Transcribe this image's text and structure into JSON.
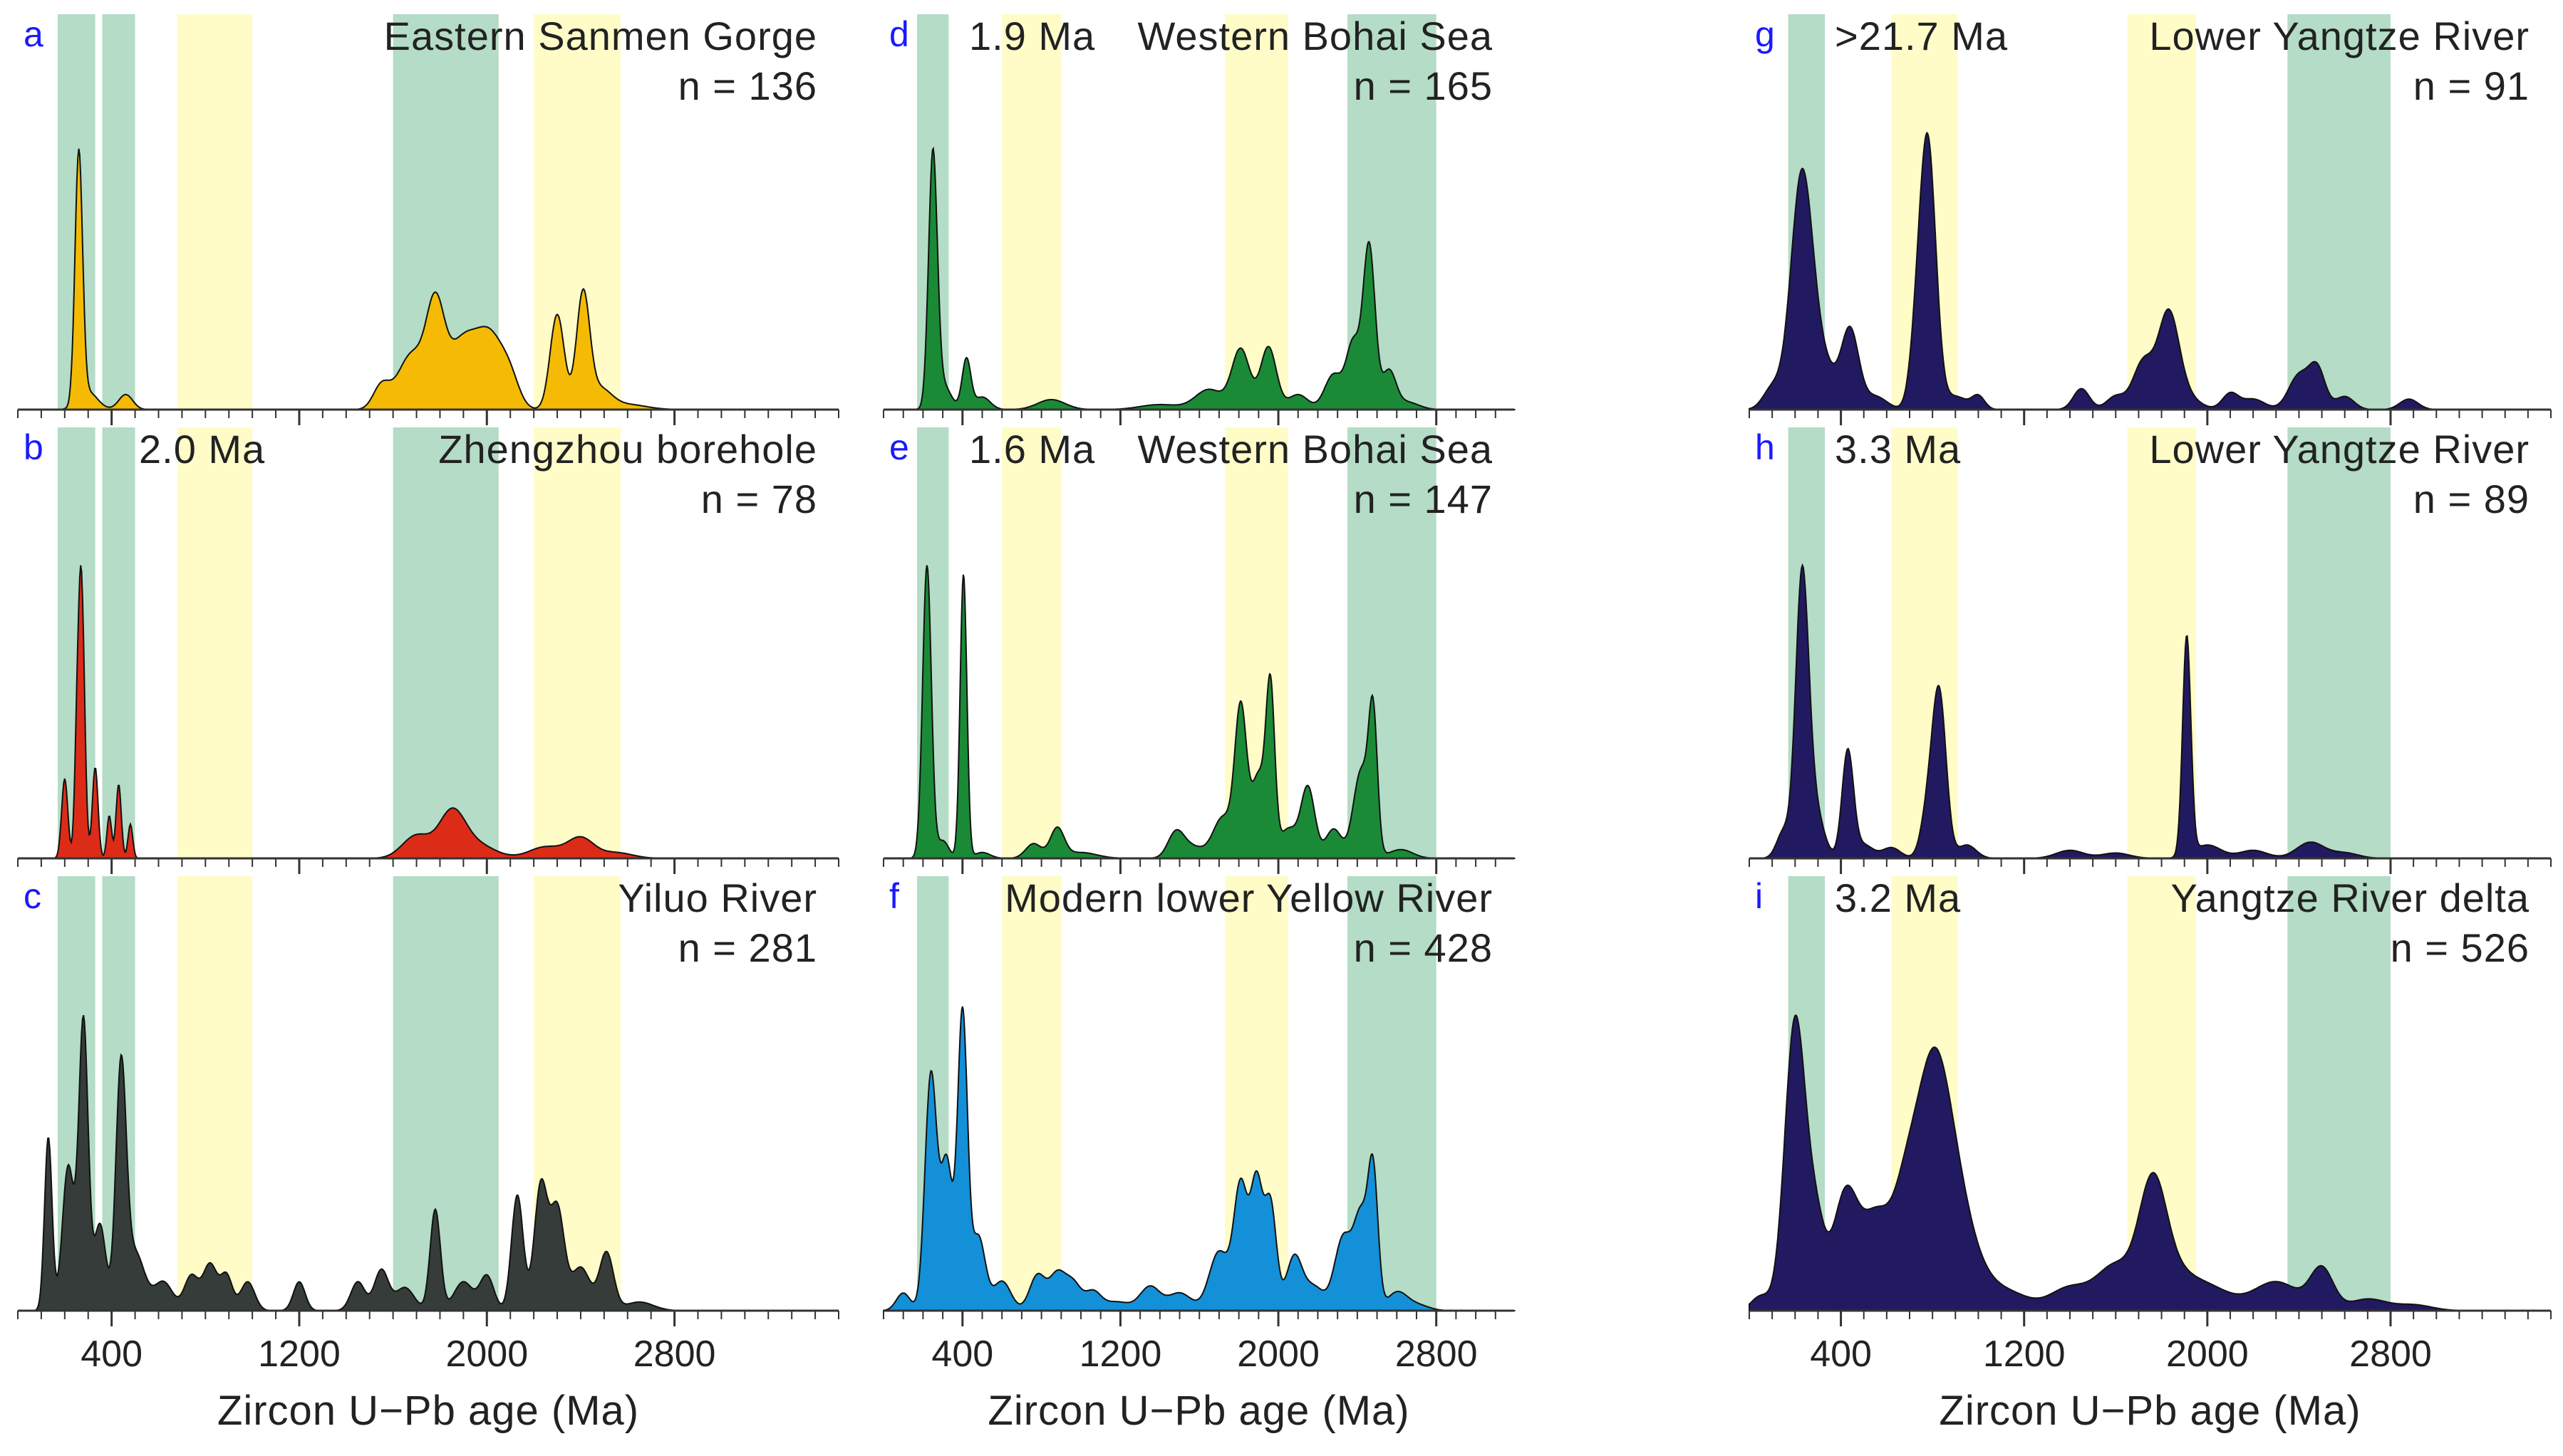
{
  "chart_data": {
    "type": "area",
    "x_axis": {
      "label": "Zircon U−Pb age (Ma)",
      "ticks": [
        400,
        1200,
        2000,
        2800
      ],
      "minor_step": 100,
      "range": [
        0,
        3500
      ]
    },
    "bands": {
      "green": [
        [
          170,
          330
        ],
        [
          360,
          500
        ],
        [
          1600,
          2050
        ],
        [
          2400,
          2850
        ],
        [
          2350,
          2800
        ]
      ],
      "yellow": [
        [
          680,
          1000
        ],
        [
          2200,
          2570
        ],
        [
          1730,
          2050
        ],
        [
          600,
          900
        ],
        [
          1650,
          1950
        ],
        [
          620,
          910
        ]
      ]
    },
    "panels": [
      {
        "id": "a",
        "letter": "a",
        "header_left": "",
        "header_right": "Eastern  Sanmen  Gorge",
        "n_label": "n = 136",
        "color": "#f5bb04",
        "green_bands": [
          [
            170,
            330
          ],
          [
            360,
            500
          ],
          [
            1600,
            2050
          ]
        ],
        "yellow_bands": [
          [
            680,
            1000
          ],
          [
            2200,
            2570
          ]
        ],
        "peaks": [
          [
            260,
            1.0,
            16
          ],
          [
            300,
            0.07,
            40
          ],
          [
            460,
            0.06,
            30
          ],
          [
            1550,
            0.09,
            35
          ],
          [
            1680,
            0.22,
            60
          ],
          [
            1780,
            0.35,
            38
          ],
          [
            1900,
            0.28,
            70
          ],
          [
            2020,
            0.24,
            55
          ],
          [
            2100,
            0.1,
            40
          ],
          [
            2300,
            0.38,
            30
          ],
          [
            2410,
            0.45,
            28
          ],
          [
            2480,
            0.08,
            50
          ],
          [
            2600,
            0.02,
            80
          ]
        ]
      },
      {
        "id": "b",
        "letter": "b",
        "header_left": "2.0 Ma",
        "header_right": "Zhengzhou borehole",
        "n_label": "n = 78",
        "color": "#dc2c18",
        "green_bands": [
          [
            170,
            330
          ],
          [
            360,
            500
          ],
          [
            1600,
            2050
          ]
        ],
        "yellow_bands": [
          [
            680,
            1000
          ],
          [
            2200,
            2570
          ]
        ],
        "peaks": [
          [
            200,
            0.28,
            13
          ],
          [
            250,
            0.2,
            10
          ],
          [
            270,
            1.0,
            14
          ],
          [
            330,
            0.32,
            12
          ],
          [
            390,
            0.15,
            10
          ],
          [
            430,
            0.26,
            11
          ],
          [
            480,
            0.12,
            10
          ],
          [
            1700,
            0.08,
            60
          ],
          [
            1850,
            0.15,
            55
          ],
          [
            1950,
            0.05,
            80
          ],
          [
            2250,
            0.04,
            70
          ],
          [
            2400,
            0.07,
            55
          ],
          [
            2550,
            0.02,
            70
          ]
        ]
      },
      {
        "id": "c",
        "letter": "c",
        "header_left": "",
        "header_right": "Yiluo River",
        "n_label": "n = 281",
        "color": "#353c3a",
        "green_bands": [
          [
            170,
            330
          ],
          [
            360,
            500
          ],
          [
            1600,
            2050
          ]
        ],
        "yellow_bands": [
          [
            680,
            1000
          ],
          [
            2200,
            2570
          ]
        ],
        "peaks": [
          [
            130,
            0.6,
            16
          ],
          [
            215,
            0.5,
            25
          ],
          [
            280,
            1.0,
            20
          ],
          [
            350,
            0.3,
            25
          ],
          [
            440,
            0.82,
            22
          ],
          [
            500,
            0.2,
            40
          ],
          [
            620,
            0.1,
            40
          ],
          [
            740,
            0.12,
            30
          ],
          [
            820,
            0.16,
            30
          ],
          [
            890,
            0.12,
            25
          ],
          [
            980,
            0.1,
            30
          ],
          [
            1200,
            0.1,
            25
          ],
          [
            1450,
            0.1,
            30
          ],
          [
            1550,
            0.14,
            30
          ],
          [
            1650,
            0.08,
            40
          ],
          [
            1780,
            0.35,
            22
          ],
          [
            1900,
            0.1,
            40
          ],
          [
            2000,
            0.12,
            30
          ],
          [
            2130,
            0.4,
            25
          ],
          [
            2230,
            0.43,
            28
          ],
          [
            2300,
            0.35,
            30
          ],
          [
            2400,
            0.15,
            40
          ],
          [
            2510,
            0.2,
            30
          ],
          [
            2650,
            0.03,
            60
          ]
        ]
      },
      {
        "id": "d",
        "letter": "d",
        "header_left": "1.9 Ma",
        "header_right": "Western Bohai Sea",
        "n_label": "n = 165",
        "color": "#1a8a36",
        "green_bands": [
          [
            170,
            330
          ],
          [
            2350,
            2800
          ]
        ],
        "yellow_bands": [
          [
            600,
            900
          ],
          [
            1730,
            2050
          ]
        ],
        "peaks": [
          [
            250,
            1.0,
            22
          ],
          [
            300,
            0.1,
            40
          ],
          [
            420,
            0.2,
            22
          ],
          [
            500,
            0.05,
            40
          ],
          [
            850,
            0.04,
            70
          ],
          [
            1400,
            0.02,
            100
          ],
          [
            1650,
            0.08,
            70
          ],
          [
            1810,
            0.24,
            45
          ],
          [
            1950,
            0.25,
            40
          ],
          [
            2100,
            0.06,
            50
          ],
          [
            2280,
            0.14,
            45
          ],
          [
            2380,
            0.26,
            35
          ],
          [
            2460,
            0.65,
            30
          ],
          [
            2560,
            0.15,
            35
          ],
          [
            2650,
            0.03,
            60
          ]
        ]
      },
      {
        "id": "e",
        "letter": "e",
        "header_left": "1.6 Ma",
        "header_right": "Western Bohai Sea",
        "n_label": "n = 147",
        "color": "#1a8a36",
        "green_bands": [
          [
            170,
            330
          ],
          [
            2350,
            2800
          ]
        ],
        "yellow_bands": [
          [
            600,
            900
          ],
          [
            1730,
            2050
          ]
        ],
        "peaks": [
          [
            220,
            1.0,
            22
          ],
          [
            300,
            0.06,
            30
          ],
          [
            405,
            0.97,
            17
          ],
          [
            500,
            0.02,
            40
          ],
          [
            760,
            0.05,
            40
          ],
          [
            880,
            0.1,
            35
          ],
          [
            1000,
            0.02,
            80
          ],
          [
            1480,
            0.08,
            40
          ],
          [
            1560,
            0.04,
            60
          ],
          [
            1720,
            0.14,
            50
          ],
          [
            1810,
            0.5,
            30
          ],
          [
            1900,
            0.28,
            35
          ],
          [
            1960,
            0.55,
            22
          ],
          [
            2050,
            0.1,
            45
          ],
          [
            2150,
            0.24,
            35
          ],
          [
            2280,
            0.1,
            40
          ],
          [
            2420,
            0.3,
            40
          ],
          [
            2480,
            0.45,
            22
          ],
          [
            2620,
            0.03,
            60
          ]
        ]
      },
      {
        "id": "f",
        "letter": "f",
        "header_left": "",
        "header_right": "Modern lower Yellow River",
        "n_label": "n =  428",
        "color": "#1390d8",
        "green_bands": [
          [
            170,
            330
          ],
          [
            2350,
            2800
          ]
        ],
        "yellow_bands": [
          [
            600,
            900
          ],
          [
            1730,
            2050
          ]
        ],
        "peaks": [
          [
            100,
            0.06,
            35
          ],
          [
            240,
            0.8,
            30
          ],
          [
            320,
            0.5,
            30
          ],
          [
            400,
            1.0,
            25
          ],
          [
            480,
            0.25,
            35
          ],
          [
            600,
            0.1,
            45
          ],
          [
            780,
            0.12,
            40
          ],
          [
            880,
            0.12,
            40
          ],
          [
            960,
            0.09,
            40
          ],
          [
            1060,
            0.06,
            40
          ],
          [
            1180,
            0.03,
            70
          ],
          [
            1350,
            0.08,
            50
          ],
          [
            1500,
            0.06,
            60
          ],
          [
            1700,
            0.2,
            50
          ],
          [
            1810,
            0.42,
            35
          ],
          [
            1890,
            0.42,
            30
          ],
          [
            1960,
            0.36,
            30
          ],
          [
            2080,
            0.18,
            40
          ],
          [
            2180,
            0.08,
            50
          ],
          [
            2330,
            0.25,
            45
          ],
          [
            2420,
            0.3,
            35
          ],
          [
            2480,
            0.45,
            25
          ],
          [
            2600,
            0.06,
            50
          ],
          [
            2700,
            0.02,
            60
          ]
        ]
      },
      {
        "id": "g",
        "letter": "g",
        "header_left": ">21.7 Ma",
        "header_right": "Lower Yangtze River",
        "n_label": "n = 91",
        "color": "#221a60",
        "green_bands": [
          [
            170,
            330
          ],
          [
            2350,
            2800
          ]
        ],
        "yellow_bands": [
          [
            620,
            910
          ],
          [
            1650,
            1950
          ]
        ],
        "peaks": [
          [
            100,
            0.08,
            40
          ],
          [
            230,
            0.9,
            48
          ],
          [
            330,
            0.15,
            50
          ],
          [
            440,
            0.3,
            38
          ],
          [
            550,
            0.05,
            50
          ],
          [
            730,
            0.2,
            30
          ],
          [
            780,
            1.0,
            35
          ],
          [
            900,
            0.05,
            50
          ],
          [
            1000,
            0.05,
            28
          ],
          [
            1450,
            0.08,
            35
          ],
          [
            1600,
            0.05,
            40
          ],
          [
            1720,
            0.18,
            45
          ],
          [
            1830,
            0.35,
            45
          ],
          [
            1900,
            0.05,
            60
          ],
          [
            2100,
            0.06,
            35
          ],
          [
            2200,
            0.04,
            50
          ],
          [
            2400,
            0.13,
            45
          ],
          [
            2480,
            0.15,
            35
          ],
          [
            2600,
            0.05,
            40
          ],
          [
            2880,
            0.04,
            40
          ]
        ]
      },
      {
        "id": "h",
        "letter": "h",
        "header_left": "3.3 Ma",
        "header_right": "Lower Yangtze River",
        "n_label": "n = 89",
        "color": "#221a60",
        "green_bands": [
          [
            170,
            330
          ],
          [
            2350,
            2800
          ]
        ],
        "yellow_bands": [
          [
            620,
            910
          ],
          [
            1650,
            1950
          ]
        ],
        "peaks": [
          [
            150,
            0.1,
            30
          ],
          [
            230,
            1.0,
            28
          ],
          [
            280,
            0.2,
            40
          ],
          [
            430,
            0.4,
            25
          ],
          [
            500,
            0.05,
            40
          ],
          [
            620,
            0.04,
            40
          ],
          [
            780,
            0.17,
            30
          ],
          [
            830,
            0.6,
            30
          ],
          [
            950,
            0.05,
            40
          ],
          [
            1400,
            0.03,
            60
          ],
          [
            1600,
            0.02,
            60
          ],
          [
            1910,
            0.82,
            18
          ],
          [
            2000,
            0.05,
            60
          ],
          [
            2200,
            0.03,
            60
          ],
          [
            2450,
            0.06,
            60
          ],
          [
            2600,
            0.02,
            60
          ]
        ]
      },
      {
        "id": "i",
        "letter": "i",
        "header_left": "3.2 Ma",
        "header_right": "Yangtze River delta",
        "n_label": "n = 526",
        "color": "#221a60",
        "green_bands": [
          [
            170,
            330
          ],
          [
            2350,
            2800
          ]
        ],
        "yellow_bands": [
          [
            620,
            910
          ],
          [
            1650,
            1950
          ]
        ],
        "peaks": [
          [
            50,
            0.05,
            40
          ],
          [
            200,
            1.0,
            45
          ],
          [
            290,
            0.28,
            40
          ],
          [
            420,
            0.4,
            55
          ],
          [
            550,
            0.3,
            60
          ],
          [
            680,
            0.35,
            60
          ],
          [
            800,
            0.75,
            70
          ],
          [
            900,
            0.3,
            70
          ],
          [
            1000,
            0.1,
            80
          ],
          [
            1150,
            0.05,
            80
          ],
          [
            1400,
            0.08,
            90
          ],
          [
            1600,
            0.15,
            80
          ],
          [
            1760,
            0.4,
            60
          ],
          [
            1850,
            0.1,
            80
          ],
          [
            2000,
            0.08,
            100
          ],
          [
            2300,
            0.1,
            100
          ],
          [
            2500,
            0.14,
            50
          ],
          [
            2700,
            0.04,
            80
          ],
          [
            2900,
            0.02,
            80
          ]
        ]
      }
    ]
  }
}
